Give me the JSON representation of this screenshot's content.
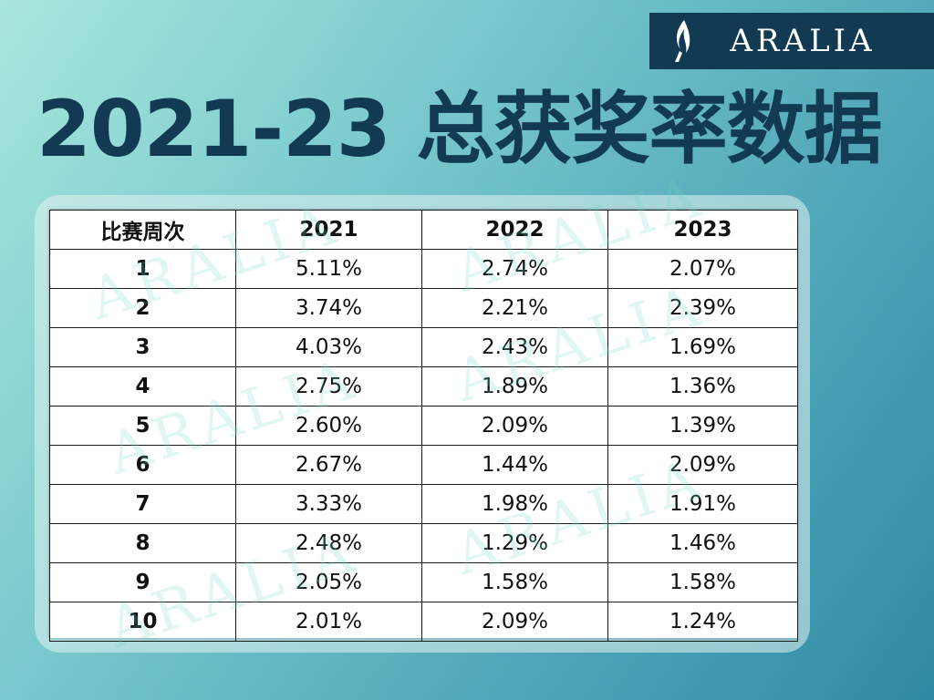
{
  "brand": {
    "name": "ARALIA"
  },
  "page": {
    "title": "2021-23 总获奖率数据"
  },
  "chart_data": {
    "type": "table",
    "columns": [
      "比赛周次",
      "2021",
      "2022",
      "2023"
    ],
    "rows": [
      [
        "1",
        "5.11%",
        "2.74%",
        "2.07%"
      ],
      [
        "2",
        "3.74%",
        "2.21%",
        "2.39%"
      ],
      [
        "3",
        "4.03%",
        "2.43%",
        "1.69%"
      ],
      [
        "4",
        "2.75%",
        "1.89%",
        "1.36%"
      ],
      [
        "5",
        "2.60%",
        "2.09%",
        "1.39%"
      ],
      [
        "6",
        "2.67%",
        "1.44%",
        "2.09%"
      ],
      [
        "7",
        "3.33%",
        "1.98%",
        "1.91%"
      ],
      [
        "8",
        "2.48%",
        "1.29%",
        "1.46%"
      ],
      [
        "9",
        "2.05%",
        "1.58%",
        "1.58%"
      ],
      [
        "10",
        "2.01%",
        "2.09%",
        "1.24%"
      ]
    ]
  },
  "colors": {
    "accent": "#123a52",
    "watermark": "#6ed7c3"
  }
}
